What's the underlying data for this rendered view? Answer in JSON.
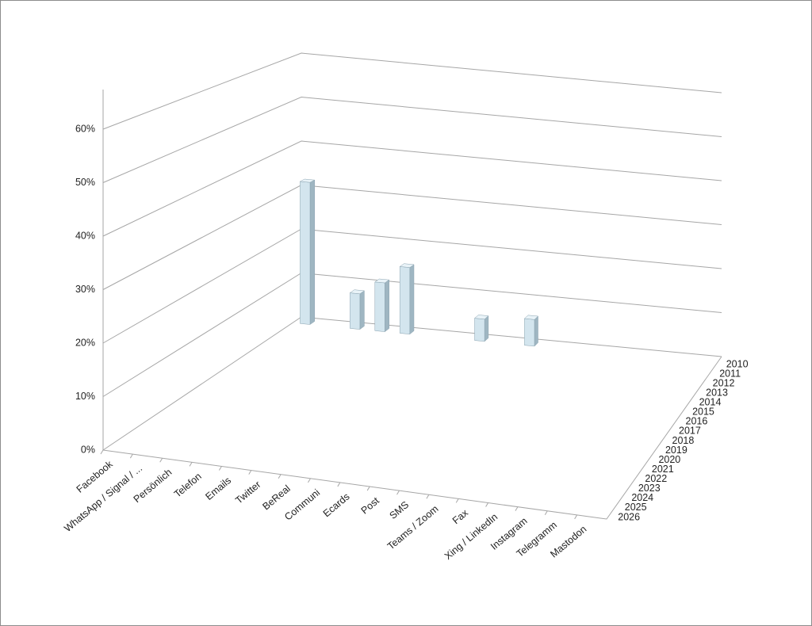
{
  "chart_data": {
    "type": "bar3d",
    "categories": [
      "Facebook",
      "WhatsApp / Signal / ...",
      "Persönlich",
      "Telefon",
      "Emails",
      "Twitter",
      "BeReal",
      "Communi",
      "Ecards",
      "Post",
      "SMS",
      "Teams / Zoom",
      "Fax",
      "Xing / LinkedIn",
      "Instagram",
      "Telegramm",
      "Mastodon"
    ],
    "series": [
      {
        "name": "2010",
        "values": [
          32,
          null,
          8,
          11,
          15,
          null,
          null,
          5,
          null,
          6,
          null,
          null,
          null,
          null,
          null,
          null,
          null
        ]
      },
      {
        "name": "2011",
        "values": [
          null,
          null,
          null,
          null,
          null,
          null,
          null,
          null,
          null,
          null,
          null,
          null,
          null,
          null,
          null,
          null,
          null
        ]
      },
      {
        "name": "2012",
        "values": [
          null,
          null,
          null,
          null,
          null,
          null,
          null,
          null,
          null,
          null,
          null,
          null,
          null,
          null,
          null,
          null,
          null
        ]
      },
      {
        "name": "2013",
        "values": [
          null,
          null,
          null,
          null,
          null,
          null,
          null,
          null,
          null,
          null,
          null,
          null,
          null,
          null,
          null,
          null,
          null
        ]
      },
      {
        "name": "2014",
        "values": [
          null,
          null,
          null,
          null,
          null,
          null,
          null,
          null,
          null,
          null,
          null,
          null,
          null,
          null,
          null,
          null,
          null
        ]
      },
      {
        "name": "2015",
        "values": [
          null,
          null,
          null,
          null,
          null,
          null,
          null,
          null,
          null,
          null,
          null,
          null,
          null,
          null,
          null,
          null,
          null
        ]
      },
      {
        "name": "2016",
        "values": [
          null,
          null,
          null,
          null,
          null,
          null,
          null,
          null,
          null,
          null,
          null,
          null,
          null,
          null,
          null,
          null,
          null
        ]
      },
      {
        "name": "2017",
        "values": [
          null,
          null,
          null,
          null,
          null,
          null,
          null,
          null,
          null,
          null,
          null,
          null,
          null,
          null,
          null,
          null,
          null
        ]
      },
      {
        "name": "2018",
        "values": [
          null,
          null,
          null,
          null,
          null,
          null,
          null,
          null,
          null,
          null,
          null,
          null,
          null,
          null,
          null,
          null,
          null
        ]
      },
      {
        "name": "2019",
        "values": [
          null,
          null,
          null,
          null,
          null,
          null,
          null,
          null,
          null,
          null,
          null,
          null,
          null,
          null,
          null,
          null,
          null
        ]
      },
      {
        "name": "2020",
        "values": [
          null,
          null,
          null,
          null,
          null,
          null,
          null,
          null,
          null,
          null,
          null,
          null,
          null,
          null,
          null,
          null,
          null
        ]
      },
      {
        "name": "2021",
        "values": [
          null,
          null,
          null,
          null,
          null,
          null,
          null,
          null,
          null,
          null,
          null,
          null,
          null,
          null,
          null,
          null,
          null
        ]
      },
      {
        "name": "2022",
        "values": [
          null,
          null,
          null,
          null,
          null,
          null,
          null,
          null,
          null,
          null,
          null,
          null,
          null,
          null,
          null,
          null,
          null
        ]
      },
      {
        "name": "2023",
        "values": [
          null,
          null,
          null,
          null,
          null,
          null,
          null,
          null,
          null,
          null,
          null,
          null,
          null,
          null,
          null,
          null,
          null
        ]
      },
      {
        "name": "2024",
        "values": [
          null,
          null,
          null,
          null,
          null,
          null,
          null,
          null,
          null,
          null,
          null,
          null,
          null,
          null,
          null,
          null,
          null
        ]
      },
      {
        "name": "2025",
        "values": [
          null,
          null,
          null,
          null,
          null,
          null,
          null,
          null,
          null,
          null,
          null,
          null,
          null,
          null,
          null,
          null,
          null
        ]
      },
      {
        "name": "2026",
        "values": [
          null,
          null,
          null,
          null,
          null,
          null,
          null,
          null,
          null,
          null,
          null,
          null,
          null,
          null,
          null,
          null,
          null
        ]
      }
    ],
    "color": "#d3e5ee",
    "ylim": [
      0,
      60
    ],
    "yticks": [
      {
        "value": 0,
        "label": "0%"
      },
      {
        "value": 10,
        "label": "10%"
      },
      {
        "value": 20,
        "label": "20%"
      },
      {
        "value": 30,
        "label": "30%"
      },
      {
        "value": 40,
        "label": "40%"
      },
      {
        "value": 50,
        "label": "50%"
      },
      {
        "value": 60,
        "label": "60%"
      }
    ],
    "grid": true
  }
}
